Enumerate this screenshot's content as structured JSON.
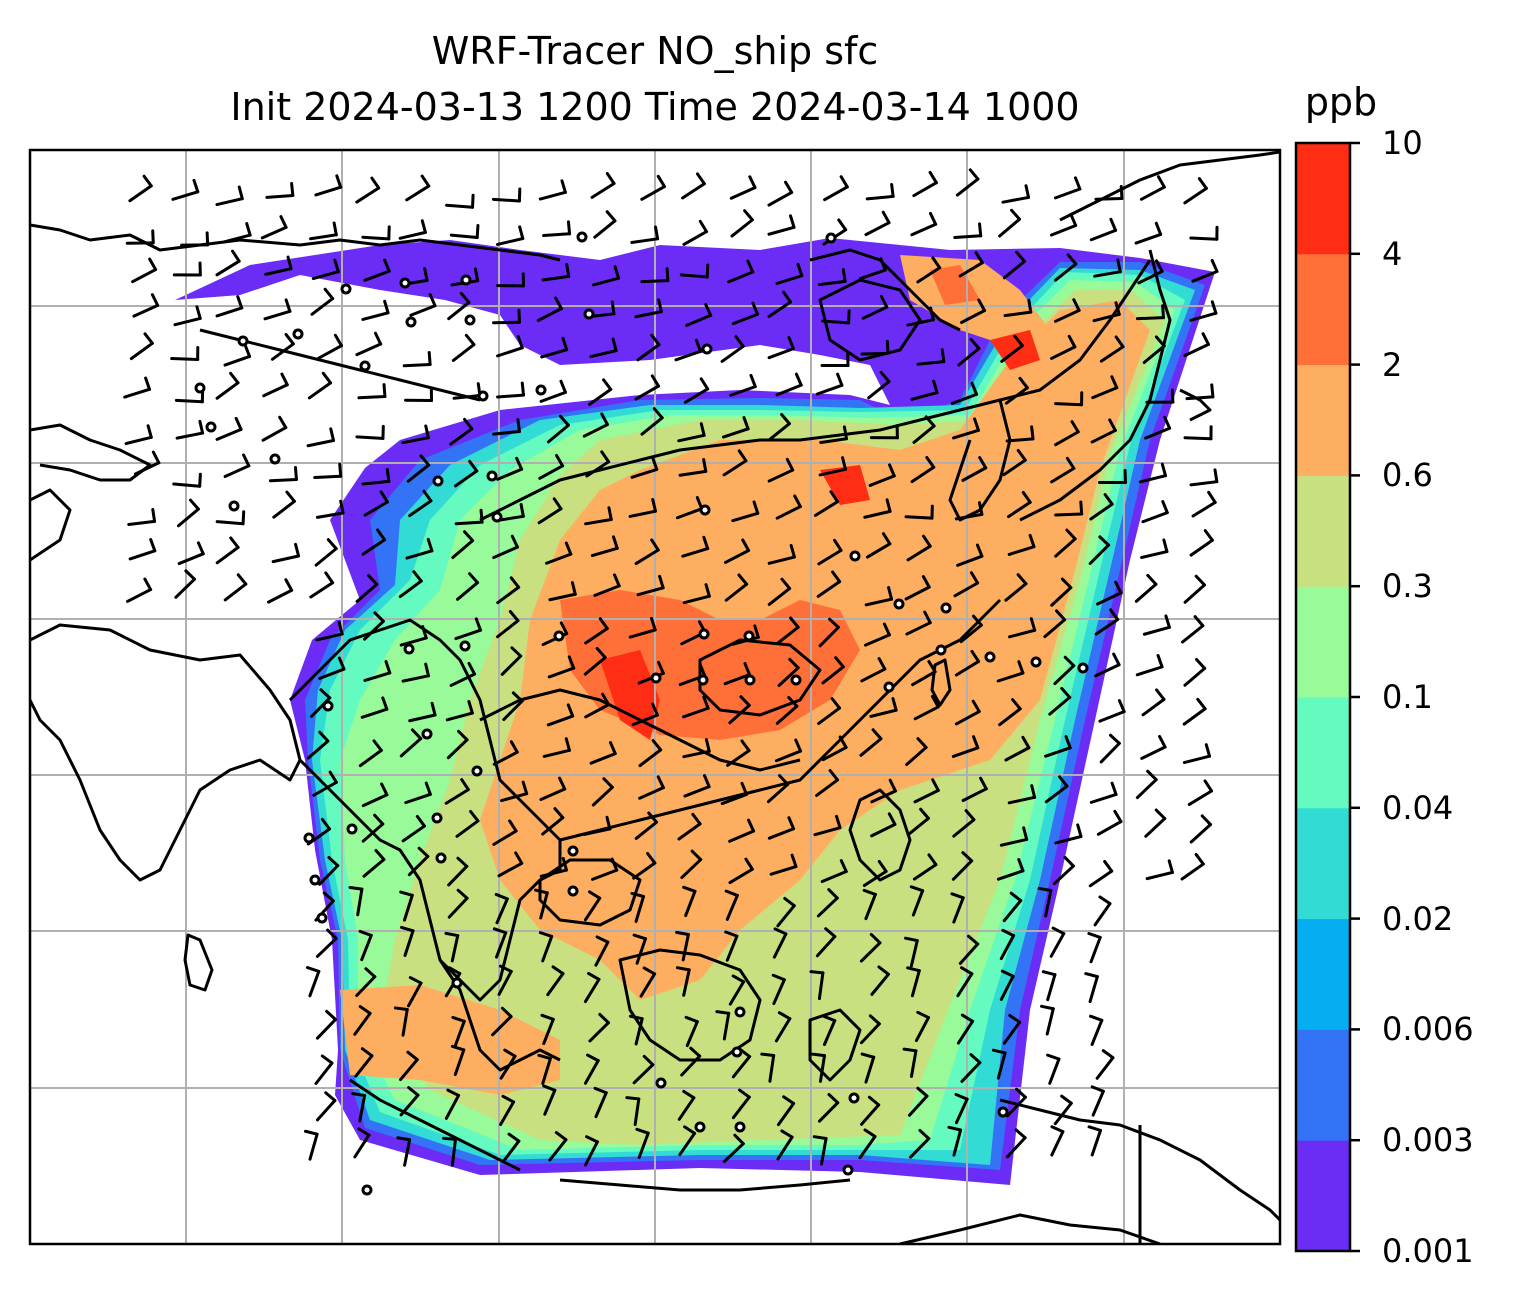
{
  "title": {
    "line1": "WRF-Tracer NO_ship sfc",
    "line2": "Init 2024-03-13 1200 Time 2024-03-14 1000"
  },
  "colorbar": {
    "unit": "ppb",
    "labels": [
      "0.001",
      "0.003",
      "0.006",
      "0.02",
      "0.04",
      "0.1",
      "0.3",
      "0.6",
      "2",
      "4",
      "10"
    ],
    "colors": [
      "#6b2cf6",
      "#3274f5",
      "#05aef0",
      "#32dcd4",
      "#64fac0",
      "#98fa98",
      "#c8e080",
      "#fdae60",
      "#fe7038",
      "#fe2d14"
    ]
  },
  "map": {
    "variable": "NO_ship",
    "level": "sfc",
    "overlays": [
      "coastlines",
      "gridlines",
      "wind-barbs",
      "tracer-contours"
    ]
  }
}
